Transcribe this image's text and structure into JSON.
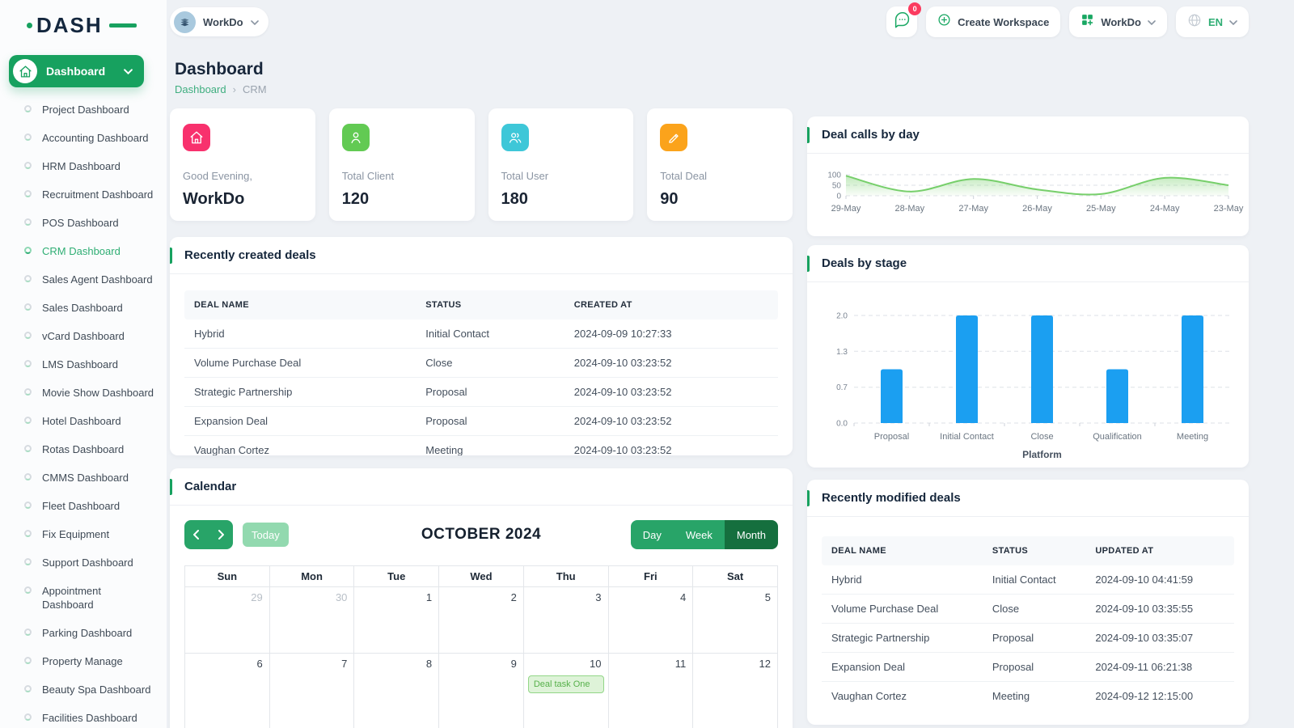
{
  "brand": {
    "logo_text": "DASH"
  },
  "topbar": {
    "workspace_label": "WorkDo",
    "messages_badge": "0",
    "create_workspace_label": "Create Workspace",
    "app_label": "WorkDo",
    "language_label": "EN"
  },
  "sidebar": {
    "dashboard_label": "Dashboard",
    "items": [
      {
        "label": "Project Dashboard"
      },
      {
        "label": "Accounting Dashboard"
      },
      {
        "label": "HRM Dashboard"
      },
      {
        "label": "Recruitment Dashboard"
      },
      {
        "label": "POS Dashboard"
      },
      {
        "label": "CRM Dashboard",
        "active": true
      },
      {
        "label": "Sales Agent Dashboard"
      },
      {
        "label": "Sales Dashboard"
      },
      {
        "label": "vCard Dashboard"
      },
      {
        "label": "LMS Dashboard"
      },
      {
        "label": "Movie Show Dashboard"
      },
      {
        "label": "Hotel Dashboard"
      },
      {
        "label": "Rotas Dashboard"
      },
      {
        "label": "CMMS Dashboard"
      },
      {
        "label": "Fleet Dashboard"
      },
      {
        "label": "Fix Equipment"
      },
      {
        "label": "Support Dashboard"
      },
      {
        "label": "Appointment Dashboard",
        "wrap": true
      },
      {
        "label": "Parking Dashboard"
      },
      {
        "label": "Property Manage"
      },
      {
        "label": "Beauty Spa Dashboard"
      },
      {
        "label": "Facilities Dashboard"
      }
    ]
  },
  "page": {
    "title": "Dashboard",
    "breadcrumb_root": "Dashboard",
    "breadcrumb_separator": "›",
    "breadcrumb_current": "CRM"
  },
  "stats": [
    {
      "icon": "home",
      "color": "#f8316d",
      "label": "Good Evening,",
      "value": "WorkDo"
    },
    {
      "icon": "user",
      "color": "#62ca53",
      "label": "Total Client",
      "value": "120"
    },
    {
      "icon": "users",
      "color": "#3ec7d8",
      "label": "Total User",
      "value": "180"
    },
    {
      "icon": "deal",
      "color": "#fba31b",
      "label": "Total Deal",
      "value": "90"
    }
  ],
  "panels": {
    "recent_created": {
      "title": "Recently created deals",
      "headers": [
        "DEAL NAME",
        "STATUS",
        "CREATED AT"
      ],
      "rows": [
        [
          "Hybrid",
          "Initial Contact",
          "2024-09-09 10:27:33"
        ],
        [
          "Volume Purchase Deal",
          "Close",
          "2024-09-10 03:23:52"
        ],
        [
          "Strategic Partnership",
          "Proposal",
          "2024-09-10 03:23:52"
        ],
        [
          "Expansion Deal",
          "Proposal",
          "2024-09-10 03:23:52"
        ],
        [
          "Vaughan Cortez",
          "Meeting",
          "2024-09-10 03:23:52"
        ]
      ]
    },
    "recent_modified": {
      "title": "Recently modified deals",
      "headers": [
        "DEAL NAME",
        "STATUS",
        "UPDATED AT"
      ],
      "rows": [
        [
          "Hybrid",
          "Initial Contact",
          "2024-09-10 04:41:59"
        ],
        [
          "Volume Purchase Deal",
          "Close",
          "2024-09-10 03:35:55"
        ],
        [
          "Strategic Partnership",
          "Proposal",
          "2024-09-10 03:35:07"
        ],
        [
          "Expansion Deal",
          "Proposal",
          "2024-09-11 06:21:38"
        ],
        [
          "Vaughan Cortez",
          "Meeting",
          "2024-09-12 12:15:00"
        ]
      ]
    },
    "calendar": {
      "title": "Calendar",
      "today_label": "Today",
      "month_title": "OCTOBER 2024",
      "views": [
        "Day",
        "Week",
        "Month"
      ],
      "active_view": "Month",
      "day_headers": [
        "Sun",
        "Mon",
        "Tue",
        "Wed",
        "Thu",
        "Fri",
        "Sat"
      ],
      "weeks": [
        [
          {
            "day": "29",
            "muted": true
          },
          {
            "day": "30",
            "muted": true
          },
          {
            "day": "1"
          },
          {
            "day": "2"
          },
          {
            "day": "3"
          },
          {
            "day": "4"
          },
          {
            "day": "5"
          }
        ],
        [
          {
            "day": "6"
          },
          {
            "day": "7"
          },
          {
            "day": "8"
          },
          {
            "day": "9"
          },
          {
            "day": "10",
            "event": "Deal task One"
          },
          {
            "day": "11"
          },
          {
            "day": "12"
          }
        ]
      ]
    }
  },
  "chart_data": [
    {
      "id": "deal_calls_by_day",
      "type": "area",
      "title": "Deal calls by day",
      "x": [
        "29-May",
        "28-May",
        "27-May",
        "26-May",
        "25-May",
        "24-May",
        "23-May"
      ],
      "values": [
        95,
        20,
        80,
        30,
        8,
        85,
        50
      ],
      "ylim": [
        0,
        100
      ],
      "yticks": [
        100,
        50,
        0
      ],
      "grid": "dashed",
      "line_color": "#77cf6b"
    },
    {
      "id": "deals_by_stage",
      "type": "bar",
      "title": "Deals by stage",
      "categories": [
        "Proposal",
        "Initial Contact",
        "Close",
        "Qualification",
        "Meeting"
      ],
      "values": [
        1,
        2,
        2,
        1,
        2
      ],
      "ylim": [
        0,
        2
      ],
      "ytick_labels": [
        "0.0",
        "0.7",
        "1.3",
        "2.0"
      ],
      "xlabel": "Platform",
      "grid": "dashed",
      "bar_color": "#1b9ff1"
    }
  ]
}
